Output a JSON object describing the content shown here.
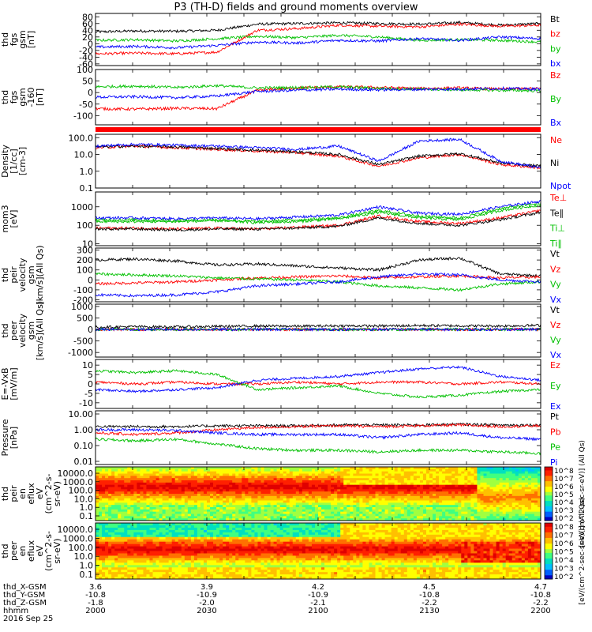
{
  "title": "P3 (TH-D) fields and ground moments overview",
  "chart_data": [
    {
      "type": "line",
      "ylabel": [
        "thd",
        "fgs",
        "gsm",
        "[nT]"
      ],
      "yticks": [
        "80",
        "60",
        "40",
        "20",
        "0",
        "-20",
        "-40",
        "-60"
      ],
      "ylim": [
        -65,
        90
      ],
      "series": [
        {
          "name": "Bt",
          "color": "#000000",
          "level": [
            35,
            38,
            37,
            40,
            58,
            60,
            62,
            60,
            58,
            63,
            55,
            60
          ]
        },
        {
          "name": "bz",
          "color": "#ff0000",
          "level": [
            -30,
            -28,
            -30,
            -25,
            40,
            45,
            55,
            52,
            50,
            58,
            52,
            55
          ]
        },
        {
          "name": "by",
          "color": "#00c000",
          "level": [
            10,
            12,
            8,
            15,
            22,
            18,
            25,
            20,
            10,
            12,
            10,
            5
          ]
        },
        {
          "name": "bx",
          "color": "#0000ff",
          "level": [
            -10,
            -8,
            -12,
            -5,
            5,
            2,
            10,
            8,
            15,
            10,
            20,
            15
          ]
        }
      ]
    },
    {
      "type": "line",
      "ylabel": [
        "thd",
        "fgs",
        "gsm",
        "-160",
        "[nT]"
      ],
      "yticks": [
        "100",
        "50",
        "0",
        "-50",
        "-100"
      ],
      "ylim": [
        -140,
        100
      ],
      "series": [
        {
          "name": "Bz",
          "color": "#ff0000",
          "level": [
            -70,
            -72,
            -68,
            -70,
            10,
            20,
            25,
            22,
            18,
            20,
            15,
            18
          ]
        },
        {
          "name": "By",
          "color": "#00c000",
          "level": [
            25,
            28,
            22,
            30,
            20,
            22,
            25,
            18,
            15,
            12,
            10,
            8
          ]
        },
        {
          "name": "Bx",
          "color": "#0000ff",
          "level": [
            -20,
            -18,
            -22,
            -15,
            5,
            10,
            15,
            12,
            14,
            15,
            18,
            15
          ]
        }
      ]
    },
    {
      "type": "line",
      "ylabel": [
        "Density",
        "[1/cc]",
        "[cm-3]"
      ],
      "yticks": [
        "100.0",
        "10.0",
        "1.0",
        "0.1"
      ],
      "ylim": [
        -1,
        2.2
      ],
      "log": true,
      "series": [
        {
          "name": "Ne",
          "color": "#ff0000",
          "level": [
            1.4,
            1.5,
            1.4,
            1.3,
            1.2,
            1.1,
            0.9,
            0.3,
            0.8,
            1.0,
            0.4,
            0.2
          ]
        },
        {
          "name": "Ni",
          "color": "#000000",
          "level": [
            1.45,
            1.5,
            1.45,
            1.35,
            1.25,
            1.15,
            1.0,
            0.4,
            0.9,
            1.05,
            0.5,
            0.3
          ]
        },
        {
          "name": "Npot",
          "color": "#0000ff",
          "level": [
            1.5,
            1.6,
            1.55,
            1.5,
            1.4,
            1.3,
            1.5,
            0.6,
            1.8,
            1.9,
            0.6,
            0.2
          ]
        }
      ]
    },
    {
      "type": "line",
      "ylabel": [
        "mom3",
        "[eV]"
      ],
      "yticks": [
        "1000",
        "100",
        "10"
      ],
      "ylim": [
        0.9,
        3.8
      ],
      "log": true,
      "series": [
        {
          "name": "Te⊥",
          "color": "#ff0000",
          "level": [
            1.85,
            1.85,
            1.8,
            1.85,
            1.8,
            1.9,
            2.0,
            2.5,
            2.2,
            2.1,
            2.4,
            2.8
          ]
        },
        {
          "name": "Te∥",
          "color": "#000000",
          "level": [
            1.8,
            1.8,
            1.75,
            1.8,
            1.8,
            1.85,
            1.95,
            2.4,
            2.1,
            2.0,
            2.3,
            2.7
          ]
        },
        {
          "name": "Ti⊥",
          "color": "#00c000",
          "level": [
            2.3,
            2.3,
            2.25,
            2.3,
            2.2,
            2.3,
            2.4,
            2.8,
            2.5,
            2.4,
            2.9,
            3.2
          ]
        },
        {
          "name": "Ti∥",
          "color": "#00c000",
          "level": [
            2.2,
            2.2,
            2.2,
            2.25,
            2.15,
            2.2,
            2.35,
            2.7,
            2.4,
            2.3,
            2.8,
            3.1
          ]
        },
        {
          "name": "",
          "color": "#0000ff",
          "level": [
            2.4,
            2.4,
            2.35,
            2.4,
            2.35,
            2.45,
            2.55,
            3.0,
            2.65,
            2.6,
            3.0,
            3.3
          ]
        }
      ]
    },
    {
      "type": "line",
      "ylabel": [
        "thd",
        "peir",
        "velocity",
        "gsm",
        "[km/s](All Qs)"
      ],
      "yticks": [
        "300",
        "200",
        "100",
        "0",
        "-100",
        "-200"
      ],
      "ylim": [
        -220,
        320
      ],
      "series": [
        {
          "name": "Vt",
          "color": "#000000",
          "level": [
            200,
            210,
            190,
            150,
            160,
            140,
            120,
            100,
            200,
            220,
            60,
            40
          ]
        },
        {
          "name": "Vz",
          "color": "#ff0000",
          "level": [
            -40,
            -30,
            -20,
            0,
            20,
            30,
            40,
            20,
            30,
            40,
            20,
            30
          ]
        },
        {
          "name": "Vy",
          "color": "#00c000",
          "level": [
            60,
            50,
            40,
            20,
            10,
            0,
            -20,
            -60,
            -80,
            -100,
            -40,
            -20
          ]
        },
        {
          "name": "Vx",
          "color": "#0000ff",
          "level": [
            -150,
            -160,
            -150,
            -120,
            -60,
            -40,
            -20,
            30,
            60,
            50,
            0,
            -20
          ]
        }
      ]
    },
    {
      "type": "line",
      "ylabel": [
        "thd",
        "peer",
        "velocity",
        "gsm",
        "[km/s](All Qs)"
      ],
      "yticks": [
        "1000",
        "500",
        "0",
        "-500",
        "-1000"
      ],
      "ylim": [
        -1200,
        1100
      ],
      "series": [
        {
          "name": "Vt",
          "color": "#000000",
          "level": [
            100,
            120,
            110,
            130,
            150,
            140,
            160,
            150,
            170,
            160,
            150,
            180
          ]
        },
        {
          "name": "Vz",
          "color": "#ff0000",
          "level": [
            0,
            0,
            0,
            0,
            0,
            0,
            0,
            0,
            0,
            0,
            0,
            0
          ]
        },
        {
          "name": "Vy",
          "color": "#00c000",
          "level": [
            0,
            0,
            0,
            0,
            0,
            0,
            0,
            0,
            0,
            0,
            0,
            0
          ]
        },
        {
          "name": "Vx",
          "color": "#0000ff",
          "level": [
            0,
            0,
            0,
            0,
            0,
            0,
            0,
            0,
            0,
            0,
            0,
            0
          ]
        }
      ]
    },
    {
      "type": "line",
      "ylabel": [
        "E=-VxB",
        "[mV/m]"
      ],
      "yticks": [
        "10",
        "5",
        "0",
        "-5",
        "-10"
      ],
      "ylim": [
        -13,
        13
      ],
      "series": [
        {
          "name": "Ez",
          "color": "#ff0000",
          "level": [
            1,
            0,
            1,
            0,
            0,
            1,
            0,
            1,
            1,
            0,
            1,
            0
          ]
        },
        {
          "name": "Ey",
          "color": "#00c000",
          "level": [
            7,
            6,
            7,
            5,
            -3,
            -2,
            -1,
            -5,
            -7,
            -6,
            -4,
            -3
          ]
        },
        {
          "name": "Ex",
          "color": "#0000ff",
          "level": [
            -3,
            -4,
            -3,
            -2,
            2,
            3,
            4,
            6,
            8,
            9,
            4,
            2
          ]
        }
      ]
    },
    {
      "type": "line",
      "ylabel": [
        "Pressure",
        "[nPa]"
      ],
      "yticks": [
        "10.00",
        "1.00",
        "0.10",
        "0.01"
      ],
      "ylim": [
        -2.2,
        1.2
      ],
      "log": true,
      "series": [
        {
          "name": "Pt",
          "color": "#000000",
          "level": [
            0.2,
            0.2,
            0.2,
            0.25,
            0.25,
            0.25,
            0.3,
            0.3,
            0.3,
            0.35,
            0.3,
            0.3
          ]
        },
        {
          "name": "Pb",
          "color": "#ff0000",
          "level": [
            -0.2,
            -0.3,
            -0.2,
            0.0,
            0.15,
            0.2,
            0.25,
            0.2,
            0.25,
            0.3,
            0.2,
            0.25
          ]
        },
        {
          "name": "Pe",
          "color": "#00c000",
          "level": [
            -0.6,
            -0.7,
            -0.6,
            -0.9,
            -1.2,
            -1.3,
            -1.3,
            -1.4,
            -1.3,
            -1.3,
            -1.4,
            -1.5
          ]
        },
        {
          "name": "Pi",
          "color": "#0000ff",
          "level": [
            0.0,
            0.0,
            -0.05,
            -0.2,
            -0.3,
            -0.3,
            -0.3,
            -0.5,
            -0.3,
            -0.2,
            -0.5,
            -0.6
          ]
        }
      ]
    },
    {
      "type": "heatmap",
      "ylabel": [
        "thd",
        "peir",
        "en",
        "eflux",
        "eV",
        "(cm^2-s-",
        "sr-eV)"
      ],
      "yticks": [
        "10000.0",
        "1000.0",
        "100.0",
        "10.0",
        "1.0",
        "0.1"
      ],
      "colorbar_label": "[eV/(cm^2-sec-sr-eV)] (All Qs)",
      "colorbar_ticks": [
        "10^8",
        "10^7",
        "10^6",
        "10^5",
        "10^4",
        "10^3",
        "10^2"
      ]
    },
    {
      "type": "heatmap",
      "ylabel": [
        "thd",
        "peer",
        "en",
        "eflux",
        "eV",
        "(cm^2-s-",
        "sr-eV)"
      ],
      "yticks": [
        "10000.0",
        "1000.0",
        "100.0",
        "10.0",
        "1.0",
        "0.1"
      ],
      "colorbar_label": "[eV/(cm^2-sec-sr-eV)] (All Qs)",
      "colorbar_ticks": [
        "10^8",
        "10^7",
        "10^6",
        "10^5",
        "10^4",
        "10^3",
        "10^2"
      ]
    }
  ],
  "xaxis": {
    "row_labels": [
      "thd_X-GSM",
      "thd_Y-GSM",
      "thd_Z-GSM",
      "hhmm"
    ],
    "columns": [
      [
        "3.6",
        "-10.8",
        "-1.8",
        "2000"
      ],
      [
        "3.9",
        "-10.9",
        "-2.0",
        "2030"
      ],
      [
        "4.2",
        "-10.9",
        "-2.1",
        "2100"
      ],
      [
        "4.5",
        "-10.8",
        "-2.2",
        "2130"
      ],
      [
        "4.7",
        "-10.8",
        "-2.2",
        "2200"
      ]
    ],
    "date": "2016 Sep 25"
  }
}
